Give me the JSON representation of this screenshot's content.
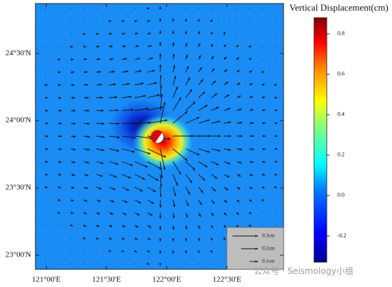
{
  "map": {
    "xlim": [
      120.91,
      122.97
    ],
    "ylim": [
      22.895,
      24.87
    ],
    "xticks": [
      {
        "value": 121,
        "label": "121°00'E"
      },
      {
        "value": 121.5,
        "label": "121°30'E"
      },
      {
        "value": 122,
        "label": "122°00'E"
      },
      {
        "value": 122.5,
        "label": "122°30'E"
      }
    ],
    "yticks": [
      {
        "value": 23,
        "label": "23°00'N"
      },
      {
        "value": 23.5,
        "label": "23°30'N"
      },
      {
        "value": 24,
        "label": "24°00'N"
      },
      {
        "value": 24.5,
        "label": "24°30'N"
      }
    ],
    "legend": [
      {
        "label": "0.3cm"
      },
      {
        "label": "0.2cm"
      },
      {
        "label": "0.1cm"
      }
    ],
    "watermark": "公众号 · Seismology小组"
  },
  "colorbar": {
    "title": "Vertical Displacement(cm)",
    "lim": [
      -0.33,
      0.88
    ],
    "ticks": [
      -0.2,
      {
        "value": 0,
        "label": "0.0"
      },
      0.2,
      0.4,
      0.6,
      0.8
    ]
  }
}
